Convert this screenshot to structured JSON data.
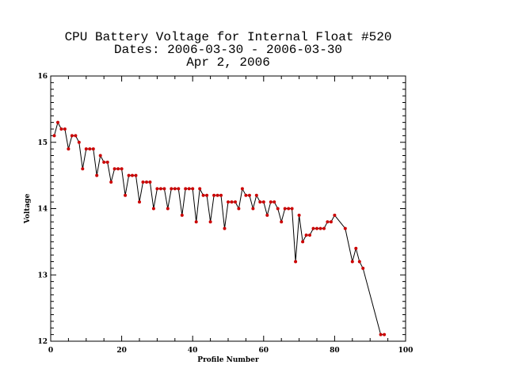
{
  "chart_data": {
    "type": "line",
    "title_lines": [
      "CPU Battery Voltage for Internal Float #520",
      "Dates:  2006-03-30 -  2006-03-30",
      "Apr  2, 2006"
    ],
    "xlabel": "Profile Number",
    "ylabel": "Voltage",
    "xlim": [
      0,
      100
    ],
    "ylim": [
      12,
      16
    ],
    "xticks": [
      0,
      20,
      40,
      60,
      80,
      100
    ],
    "yticks": [
      12,
      13,
      14,
      15,
      16
    ],
    "grid": false,
    "colors": {
      "line": "#000000",
      "marker": "#cc0000",
      "axes": "#000000"
    },
    "series": [
      {
        "x": [
          1,
          2,
          3,
          4,
          5,
          6,
          7,
          8,
          9,
          10,
          11,
          12,
          13,
          14,
          15,
          16,
          17,
          18,
          19,
          20,
          21,
          22,
          23,
          24,
          25,
          26,
          27,
          28,
          29,
          30,
          31,
          32,
          33,
          34,
          35,
          36,
          37,
          38,
          39,
          40,
          41,
          42,
          43,
          44,
          45,
          46,
          47,
          48,
          49,
          50,
          51,
          52,
          53,
          54,
          55,
          56,
          57,
          58,
          59,
          60,
          61,
          62,
          63,
          64,
          65,
          66,
          67,
          68,
          69,
          70,
          71,
          72,
          73,
          74,
          75,
          76,
          77,
          78,
          79,
          80,
          83,
          85,
          86,
          87,
          88,
          93,
          94
        ],
        "y": [
          15.1,
          15.3,
          15.2,
          15.2,
          14.9,
          15.1,
          15.1,
          15.0,
          14.6,
          14.9,
          14.9,
          14.9,
          14.5,
          14.8,
          14.7,
          14.7,
          14.4,
          14.6,
          14.6,
          14.6,
          14.2,
          14.5,
          14.5,
          14.5,
          14.1,
          14.4,
          14.4,
          14.4,
          14.0,
          14.3,
          14.3,
          14.3,
          14.0,
          14.3,
          14.3,
          14.3,
          13.9,
          14.3,
          14.3,
          14.3,
          13.8,
          14.3,
          14.2,
          14.2,
          13.8,
          14.2,
          14.2,
          14.2,
          13.7,
          14.1,
          14.1,
          14.1,
          14.0,
          14.3,
          14.2,
          14.2,
          14.0,
          14.2,
          14.1,
          14.1,
          13.9,
          14.1,
          14.1,
          14.0,
          13.8,
          14.0,
          14.0,
          14.0,
          13.2,
          13.9,
          13.5,
          13.6,
          13.6,
          13.7,
          13.7,
          13.7,
          13.7,
          13.8,
          13.8,
          13.9,
          13.7,
          13.2,
          13.4,
          13.2,
          13.1,
          12.1,
          12.1
        ]
      }
    ]
  }
}
